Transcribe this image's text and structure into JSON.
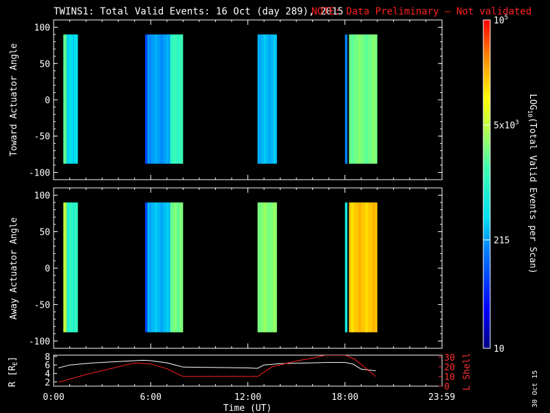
{
  "header": {
    "title": "TWINS1: Total Valid Events: 16 Oct (day 289), 2015",
    "note": "NOTE: Data Preliminary — Not validated",
    "note_color": "#ff2020"
  },
  "side_date": "30 Oct 15",
  "chart_data": [
    {
      "type": "heatmap",
      "panel": "toward",
      "ylabel": "Toward Actuator Angle",
      "xlim": [
        0,
        24
      ],
      "ylim": [
        -110,
        110
      ],
      "yticks": [
        "100",
        "50",
        "0",
        "-50",
        "-100"
      ],
      "ytick_values": [
        100,
        50,
        0,
        -50,
        -100
      ],
      "data_angle_range": [
        -88,
        90
      ],
      "bands": [
        {
          "start": 0.6,
          "end": 0.8,
          "level": 0.58
        },
        {
          "start": 0.8,
          "end": 1.5,
          "level": 0.4
        },
        {
          "start": 5.65,
          "end": 5.8,
          "level": 0.22
        },
        {
          "start": 5.8,
          "end": 7.2,
          "level": 0.33
        },
        {
          "start": 7.2,
          "end": 8.0,
          "level": 0.52
        },
        {
          "start": 12.6,
          "end": 13.8,
          "level": 0.36
        },
        {
          "start": 18.0,
          "end": 18.15,
          "level": 0.3
        },
        {
          "start": 18.25,
          "end": 20.0,
          "level": 0.6
        }
      ]
    },
    {
      "type": "heatmap",
      "panel": "away",
      "ylabel": "Away Actuator Angle",
      "xlim": [
        0,
        24
      ],
      "ylim": [
        -110,
        110
      ],
      "yticks": [
        "100",
        "50",
        "0",
        "-50",
        "-100"
      ],
      "ytick_values": [
        100,
        50,
        0,
        -50,
        -100
      ],
      "data_angle_range": [
        -88,
        90
      ],
      "bands": [
        {
          "start": 0.6,
          "end": 0.8,
          "level": 0.68
        },
        {
          "start": 0.8,
          "end": 1.5,
          "level": 0.5
        },
        {
          "start": 5.65,
          "end": 5.8,
          "level": 0.22
        },
        {
          "start": 5.8,
          "end": 7.2,
          "level": 0.36
        },
        {
          "start": 7.2,
          "end": 8.0,
          "level": 0.6
        },
        {
          "start": 12.6,
          "end": 13.8,
          "level": 0.62
        },
        {
          "start": 18.0,
          "end": 18.15,
          "level": 0.45
        },
        {
          "start": 18.25,
          "end": 20.0,
          "level": 0.82
        }
      ]
    },
    {
      "type": "line",
      "panel": "orbit",
      "xlabel": "Time (UT)",
      "ylabel_left": "R [RE]",
      "ylabel_right": "L Shell",
      "x_ticks": [
        "0:00",
        "6:00",
        "12:00",
        "18:00",
        "23:59"
      ],
      "x_tick_values": [
        0,
        6,
        12,
        18,
        23.98
      ],
      "left_ticks": [
        "8",
        "6",
        "4",
        "2"
      ],
      "left_tick_values": [
        8,
        6,
        4,
        2
      ],
      "left_lim": [
        1,
        8.3
      ],
      "right_ticks": [
        "30",
        "20",
        "10",
        "0"
      ],
      "right_tick_values": [
        30,
        20,
        10,
        0
      ],
      "right_lim": [
        0,
        32
      ],
      "series": [
        {
          "name": "R",
          "color": "#ffffff",
          "x": [
            0.3,
            1.0,
            2.5,
            4.0,
            5.0,
            5.5,
            6.0,
            7.0,
            8.0,
            10.0,
            12.0,
            12.6,
            13.0,
            14.0,
            16.0,
            17.0,
            18.0,
            18.5,
            19.0,
            19.9
          ],
          "y": [
            5.3,
            6.0,
            6.5,
            6.8,
            7.0,
            7.1,
            7.0,
            6.5,
            5.5,
            5.4,
            5.3,
            5.2,
            6.0,
            6.3,
            6.5,
            6.6,
            6.6,
            6.2,
            5.0,
            4.6
          ]
        },
        {
          "name": "L Shell",
          "color": "#ff2020",
          "x": [
            0.3,
            2.0,
            4.0,
            5.0,
            6.0,
            7.0,
            8.0,
            10.0,
            12.0,
            12.6,
            13.5,
            15.0,
            16.0,
            16.8,
            18.0,
            18.6,
            19.9
          ],
          "y": [
            4,
            12,
            20,
            24,
            23,
            18,
            10,
            10,
            10,
            10,
            20,
            26,
            29,
            32,
            32,
            28,
            10
          ]
        }
      ]
    }
  ],
  "colorbar": {
    "label": "LOG10(Total Valid Events per Scan)",
    "label_main": "LOG",
    "label_sub": "10",
    "label_rest": "(Total Valid Events per Scan)",
    "ticks": [
      {
        "text": "10",
        "level": 0.0
      },
      {
        "text": "215",
        "level": 0.33
      },
      {
        "text": "5x10^3",
        "base": "5x10",
        "exp": "3",
        "level": 0.68
      },
      {
        "text": "10^5",
        "base": "10",
        "exp": "5",
        "level": 1.0
      }
    ]
  }
}
